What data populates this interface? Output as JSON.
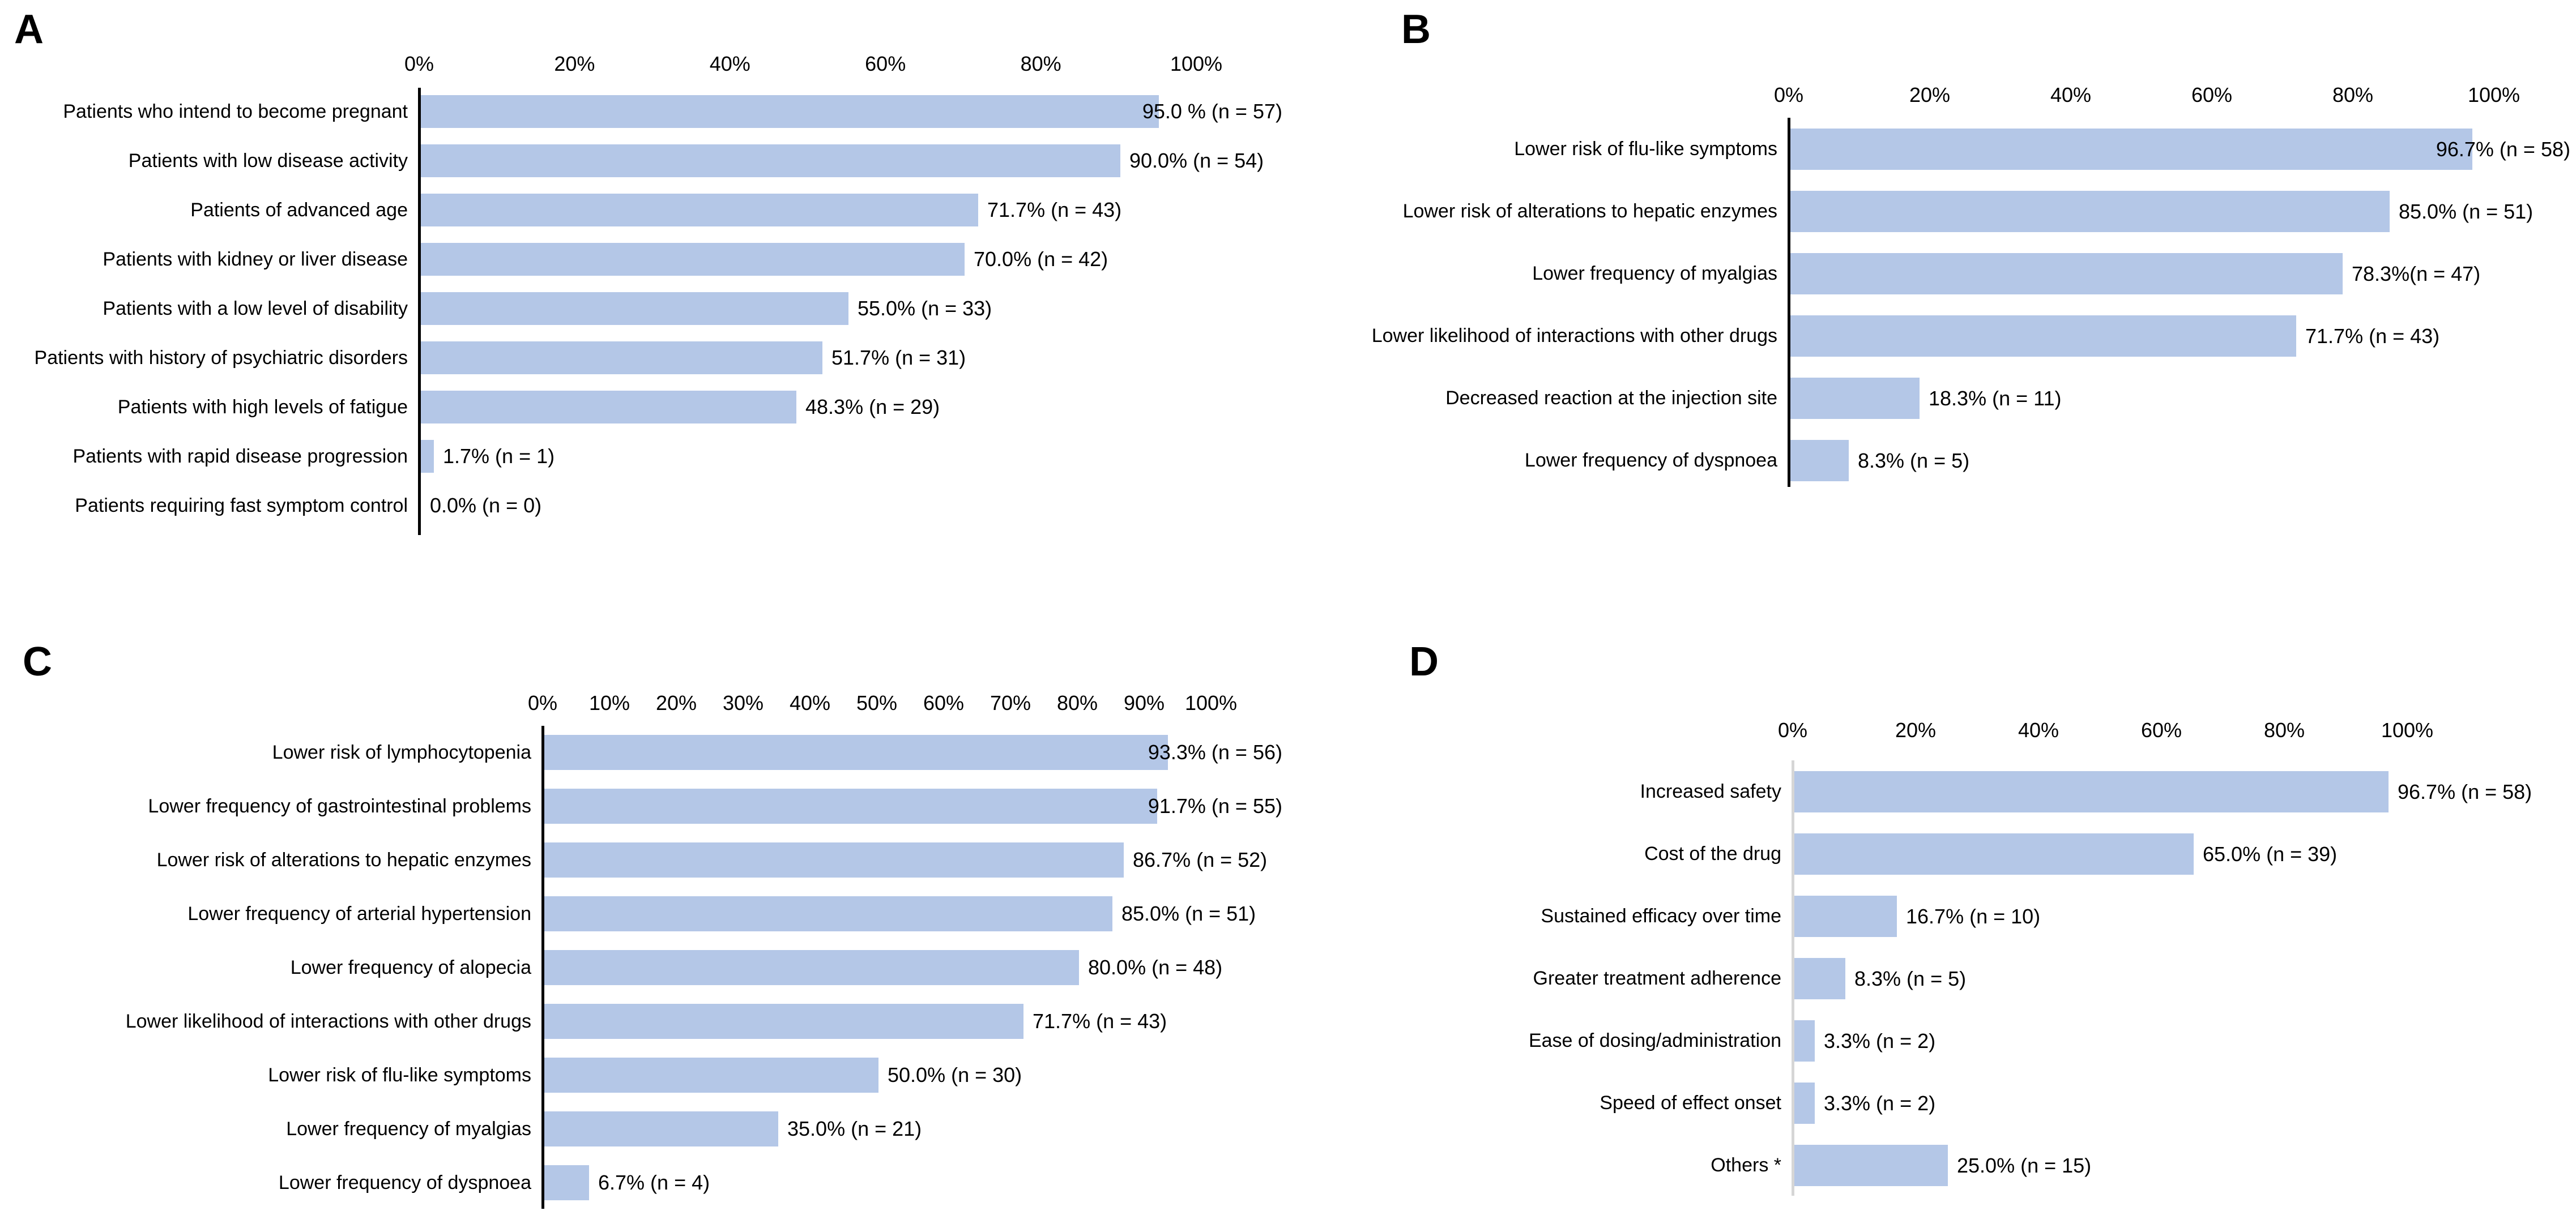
{
  "figure": {
    "background_color": "#ffffff",
    "text_color": "#000000",
    "bar_color": "#b4c7e7"
  },
  "chart_data": [
    {
      "panel_label": "A",
      "type": "bar",
      "orientation": "horizontal",
      "grid": false,
      "legend": null,
      "xlim": [
        0,
        100
      ],
      "x_ticks": [
        "0%",
        "20%",
        "40%",
        "60%",
        "80%",
        "100%"
      ],
      "bar_color": "#b4c7e7",
      "axis_color": "#000000",
      "categories": [
        "Patients who intend to become pregnant",
        "Patients with low disease activity",
        "Patients of advanced age",
        "Patients with kidney or liver disease",
        "Patients with a low level of disability",
        "Patients with history of psychiatric disorders",
        "Patients with high levels of fatigue",
        "Patients with rapid disease progression",
        "Patients requiring fast symptom control"
      ],
      "values": [
        95.0,
        90.0,
        71.7,
        70.0,
        55.0,
        51.7,
        48.3,
        1.7,
        0.0
      ],
      "counts": [
        57,
        54,
        43,
        42,
        33,
        31,
        29,
        1,
        0
      ],
      "value_labels": [
        "95.0 % (n = 57)",
        "90.0% (n = 54)",
        "71.7% (n = 43)",
        "70.0% (n = 42)",
        "55.0% (n = 33)",
        "51.7% (n = 31)",
        "48.3% (n = 29)",
        "1.7% (n = 1)",
        "0.0% (n = 0)"
      ]
    },
    {
      "panel_label": "B",
      "type": "bar",
      "orientation": "horizontal",
      "grid": false,
      "legend": null,
      "xlim": [
        0,
        100
      ],
      "x_ticks": [
        "0%",
        "20%",
        "40%",
        "60%",
        "80%",
        "100%"
      ],
      "bar_color": "#b4c7e7",
      "axis_color": "#000000",
      "categories": [
        "Lower risk of flu-like symptoms",
        "Lower risk of alterations to hepatic enzymes",
        "Lower frequency of myalgias",
        "Lower likelihood of interactions with other drugs",
        "Decreased reaction at the injection site",
        "Lower frequency of dyspnoea"
      ],
      "values": [
        96.7,
        85.0,
        78.3,
        71.7,
        18.3,
        8.3
      ],
      "counts": [
        58,
        51,
        47,
        43,
        11,
        5
      ],
      "value_labels": [
        "96.7% (n = 58)",
        "85.0% (n = 51)",
        "78.3%(n = 47)",
        "71.7% (n = 43)",
        "18.3% (n = 11)",
        "8.3% (n = 5)"
      ]
    },
    {
      "panel_label": "C",
      "type": "bar",
      "orientation": "horizontal",
      "grid": false,
      "legend": null,
      "xlim": [
        0,
        100
      ],
      "x_ticks": [
        "0%",
        "10%",
        "20%",
        "30%",
        "40%",
        "50%",
        "60%",
        "70%",
        "80%",
        "90%",
        "100%"
      ],
      "bar_color": "#b4c7e7",
      "axis_color": "#000000",
      "categories": [
        "Lower risk of lymphocytopenia",
        "Lower frequency of gastrointestinal problems",
        "Lower risk of alterations to hepatic enzymes",
        "Lower frequency of arterial hypertension",
        "Lower frequency of alopecia",
        "Lower likelihood of interactions with other drugs",
        "Lower risk of flu-like symptoms",
        "Lower frequency of myalgias",
        "Lower frequency of dyspnoea"
      ],
      "values": [
        93.3,
        91.7,
        86.7,
        85.0,
        80.0,
        71.7,
        50.0,
        35.0,
        6.7
      ],
      "counts": [
        56,
        55,
        52,
        51,
        48,
        43,
        30,
        21,
        4
      ],
      "value_labels": [
        "93.3% (n = 56)",
        "91.7% (n = 55)",
        "86.7% (n = 52)",
        "85.0% (n = 51)",
        "80.0% (n = 48)",
        "71.7% (n = 43)",
        "50.0% (n = 30)",
        "35.0% (n = 21)",
        "6.7% (n = 4)"
      ]
    },
    {
      "panel_label": "D",
      "type": "bar",
      "orientation": "horizontal",
      "grid": false,
      "legend": null,
      "xlim": [
        0,
        100
      ],
      "x_ticks": [
        "0%",
        "20%",
        "40%",
        "60%",
        "80%",
        "100%"
      ],
      "bar_color": "#b4c7e7",
      "axis_color": "#d6d6d6",
      "categories": [
        "Increased safety",
        "Cost of the drug",
        "Sustained efficacy over time",
        "Greater treatment adherence",
        "Ease of dosing/administration",
        "Speed of effect onset",
        "Others *"
      ],
      "values": [
        96.7,
        65.0,
        16.7,
        8.3,
        3.3,
        3.3,
        25.0
      ],
      "counts": [
        58,
        39,
        10,
        5,
        2,
        2,
        15
      ],
      "value_labels": [
        "96.7% (n = 58)",
        "65.0% (n = 39)",
        "16.7% (n = 10)",
        "8.3% (n = 5)",
        "3.3% (n = 2)",
        "3.3% (n = 2)",
        "25.0% (n = 15)"
      ]
    }
  ]
}
